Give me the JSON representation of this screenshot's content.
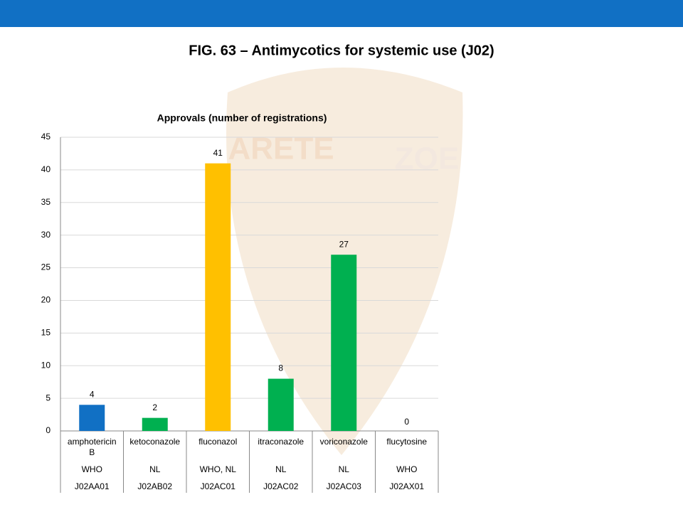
{
  "chart_data": {
    "type": "bar",
    "title": "FIG. 63 – Antimycotics for systemic use (J02)",
    "subtitle": "Approvals (number of registrations)",
    "watermark": [
      "ARETE",
      "ZOE"
    ],
    "categories": [
      "amphotericin B",
      "ketoconazole",
      "fluconazol",
      "itraconazole",
      "voriconazole",
      "flucytosine"
    ],
    "category_levels": [
      [
        "WHO",
        "NL",
        "WHO, NL",
        "NL",
        "NL",
        "WHO"
      ],
      [
        "J02AA01",
        "J02AB02",
        "J02AC01",
        "J02AC02",
        "J02AC03",
        "J02AX01"
      ]
    ],
    "values": [
      4,
      2,
      41,
      8,
      27,
      0
    ],
    "colors": [
      "#1170c4",
      "#00b050",
      "#ffc000",
      "#00b050",
      "#00b050",
      "#00b050"
    ],
    "ylim": [
      0,
      45
    ],
    "yticks": [
      0,
      5,
      10,
      15,
      20,
      25,
      30,
      35,
      40,
      45
    ],
    "grid": true
  }
}
